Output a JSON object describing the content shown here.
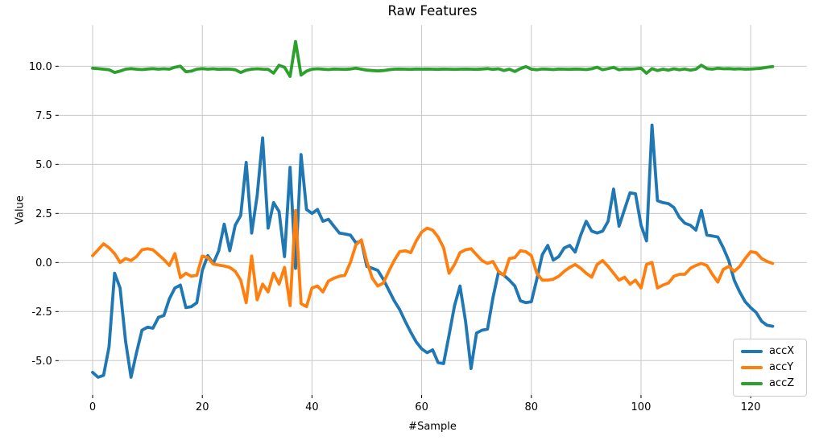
{
  "chart_data": {
    "type": "line",
    "title": "Raw Features",
    "xlabel": "#Sample",
    "ylabel": "Value",
    "n_samples": 125,
    "x_is_sample_index": true,
    "xlim": [
      -6.2,
      130.2
    ],
    "ylim": [
      -6.75,
      12.1
    ],
    "xticks": [
      0,
      20,
      40,
      60,
      80,
      100,
      120
    ],
    "yticks": [
      -5.0,
      -2.5,
      0.0,
      2.5,
      5.0,
      7.5,
      10.0
    ],
    "grid": true,
    "grid_color": "#c8c8c8",
    "background": "#ffffff",
    "legend_position": "lower right",
    "series": [
      {
        "name": "accX",
        "color": "#1f77b4",
        "values": [
          -5.6,
          -5.85,
          -5.75,
          -4.3,
          -0.55,
          -1.3,
          -4.0,
          -5.85,
          -4.6,
          -3.45,
          -3.3,
          -3.35,
          -2.8,
          -2.7,
          -1.85,
          -1.3,
          -1.15,
          -2.3,
          -2.25,
          -2.05,
          -0.4,
          0.35,
          -0.05,
          0.6,
          1.95,
          0.6,
          1.9,
          2.4,
          5.1,
          1.5,
          3.4,
          6.35,
          1.75,
          3.05,
          2.6,
          0.3,
          4.85,
          -0.3,
          5.5,
          2.7,
          2.5,
          2.7,
          2.1,
          2.2,
          1.85,
          1.5,
          1.45,
          1.4,
          1.0,
          1.1,
          -0.2,
          -0.3,
          -0.4,
          -0.85,
          -1.4,
          -1.95,
          -2.4,
          -3.0,
          -3.55,
          -4.05,
          -4.4,
          -4.6,
          -4.45,
          -5.1,
          -5.15,
          -3.7,
          -2.2,
          -1.2,
          -3.0,
          -5.4,
          -3.6,
          -3.45,
          -3.4,
          -1.8,
          -0.5,
          -0.65,
          -0.9,
          -1.2,
          -1.95,
          -2.05,
          -2.0,
          -0.85,
          0.4,
          0.87,
          0.12,
          0.3,
          0.74,
          0.87,
          0.53,
          1.4,
          2.1,
          1.6,
          1.5,
          1.6,
          2.1,
          3.74,
          1.85,
          2.7,
          3.55,
          3.5,
          1.9,
          1.1,
          7.0,
          3.15,
          3.05,
          3.0,
          2.8,
          2.3,
          2.0,
          1.9,
          1.65,
          2.65,
          1.4,
          1.35,
          1.3,
          0.75,
          0.1,
          -0.9,
          -1.5,
          -2.0,
          -2.3,
          -2.55,
          -3.0,
          -3.2,
          -3.25
        ]
      },
      {
        "name": "accY",
        "color": "#ff7f0e",
        "values": [
          0.35,
          0.65,
          0.95,
          0.75,
          0.45,
          0.0,
          0.2,
          0.1,
          0.3,
          0.65,
          0.7,
          0.65,
          0.4,
          0.15,
          -0.15,
          0.45,
          -0.77,
          -0.55,
          -0.7,
          -0.65,
          0.33,
          0.25,
          -0.08,
          -0.13,
          -0.18,
          -0.25,
          -0.45,
          -0.9,
          -2.05,
          0.33,
          -1.9,
          -1.1,
          -1.5,
          -0.55,
          -1.1,
          -0.25,
          -2.2,
          2.65,
          -2.1,
          -2.25,
          -1.3,
          -1.2,
          -1.5,
          -0.95,
          -0.8,
          -0.7,
          -0.65,
          0.0,
          0.9,
          1.15,
          0.05,
          -0.8,
          -1.2,
          -1.05,
          -0.45,
          0.1,
          0.55,
          0.6,
          0.5,
          1.1,
          1.55,
          1.75,
          1.65,
          1.3,
          0.75,
          -0.55,
          -0.1,
          0.5,
          0.65,
          0.7,
          0.4,
          0.1,
          -0.05,
          0.05,
          -0.45,
          -0.65,
          0.2,
          0.25,
          0.6,
          0.55,
          0.35,
          -0.55,
          -0.9,
          -0.9,
          -0.85,
          -0.7,
          -0.45,
          -0.25,
          -0.1,
          -0.3,
          -0.55,
          -0.75,
          -0.1,
          0.1,
          -0.2,
          -0.55,
          -0.9,
          -0.75,
          -1.1,
          -0.9,
          -1.3,
          -0.1,
          0.0,
          -1.3,
          -1.15,
          -1.05,
          -0.7,
          -0.6,
          -0.6,
          -0.3,
          -0.15,
          -0.05,
          -0.15,
          -0.6,
          -1.0,
          -0.35,
          -0.2,
          -0.45,
          -0.2,
          0.2,
          0.55,
          0.5,
          0.2,
          0.05,
          -0.05
        ]
      },
      {
        "name": "accZ",
        "color": "#2ca02c",
        "values": [
          9.9,
          9.88,
          9.85,
          9.82,
          9.68,
          9.75,
          9.85,
          9.88,
          9.85,
          9.83,
          9.86,
          9.88,
          9.85,
          9.87,
          9.85,
          9.95,
          10.0,
          9.72,
          9.75,
          9.85,
          9.88,
          9.85,
          9.87,
          9.84,
          9.86,
          9.85,
          9.82,
          9.68,
          9.8,
          9.85,
          9.87,
          9.85,
          9.84,
          9.65,
          10.05,
          9.95,
          9.48,
          11.26,
          9.55,
          9.75,
          9.85,
          9.87,
          9.85,
          9.83,
          9.86,
          9.85,
          9.84,
          9.86,
          9.9,
          9.85,
          9.8,
          9.78,
          9.76,
          9.78,
          9.82,
          9.85,
          9.86,
          9.85,
          9.84,
          9.86,
          9.85,
          9.86,
          9.85,
          9.84,
          9.86,
          9.85,
          9.84,
          9.85,
          9.86,
          9.85,
          9.84,
          9.86,
          9.88,
          9.84,
          9.87,
          9.78,
          9.85,
          9.73,
          9.88,
          9.98,
          9.85,
          9.82,
          9.86,
          9.85,
          9.83,
          9.86,
          9.85,
          9.84,
          9.86,
          9.85,
          9.83,
          9.87,
          9.95,
          9.82,
          9.88,
          9.94,
          9.82,
          9.86,
          9.85,
          9.87,
          9.9,
          9.64,
          9.88,
          9.78,
          9.85,
          9.8,
          9.87,
          9.82,
          9.86,
          9.8,
          9.85,
          10.05,
          9.88,
          9.85,
          9.9,
          9.87,
          9.88,
          9.86,
          9.87,
          9.85,
          9.86,
          9.88,
          9.9,
          9.95,
          9.98
        ]
      }
    ]
  }
}
